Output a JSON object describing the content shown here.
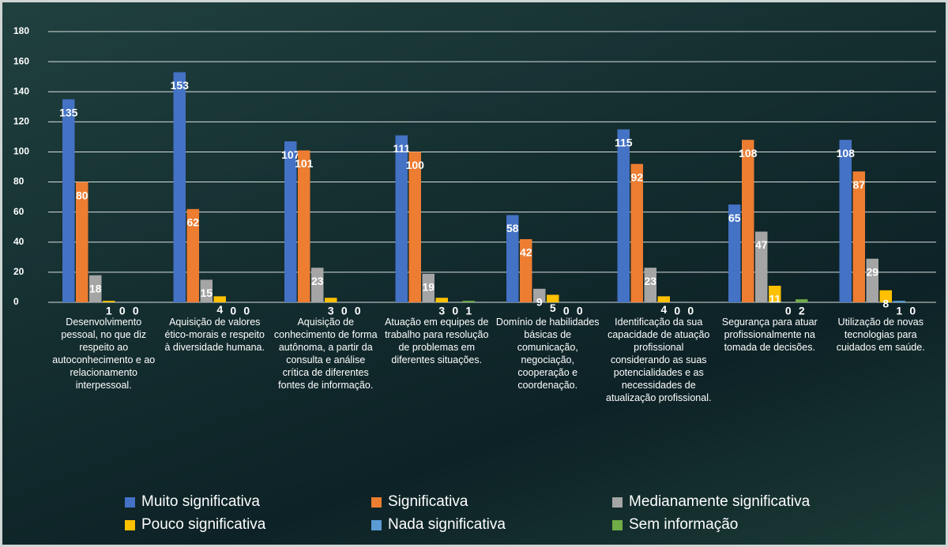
{
  "chart_data": {
    "type": "bar",
    "categories": [
      "Desenvolvimento pessoal, no que diz respeito ao autoconhecimento e ao relacionamento interpessoal.",
      "Aquisição de valores ético-morais e respeito à diversidade humana.",
      "Aquisição de conhecimento de forma autônoma, a partir da consulta e análise crítica de diferentes fontes de informação.",
      "Atuação em equipes de trabalho para resolução de problemas em diferentes situações.",
      "Domínio de habilidades básicas de comunicação, negociação, cooperação e coordenação.",
      "Identificação da sua capacidade de atuação profissional considerando as suas potencialidades e as necessidades de atualização profissional.",
      "Segurança para atuar profissionalmente na tomada de decisões.",
      "Utilização de novas tecnologias para cuidados em saúde."
    ],
    "series": [
      {
        "name": "Muito significativa",
        "color": "#4472c4",
        "values": [
          135,
          153,
          107,
          111,
          58,
          115,
          65,
          108
        ]
      },
      {
        "name": "Significativa",
        "color": "#ed7d31",
        "values": [
          80,
          62,
          101,
          100,
          42,
          92,
          108,
          87
        ]
      },
      {
        "name": "Medianamente significativa",
        "color": "#a5a5a5",
        "values": [
          18,
          15,
          23,
          19,
          9,
          23,
          47,
          29
        ]
      },
      {
        "name": "Pouco significativa",
        "color": "#ffc000",
        "values": [
          1,
          4,
          3,
          3,
          5,
          4,
          11,
          8
        ]
      },
      {
        "name": "Nada significativa",
        "color": "#5b9bd5",
        "values": [
          0,
          0,
          0,
          0,
          0,
          0,
          0,
          1
        ]
      },
      {
        "name": "Sem informação",
        "color": "#70ad47",
        "values": [
          0,
          0,
          0,
          1,
          0,
          0,
          2,
          0
        ]
      }
    ],
    "ylim": [
      0,
      180
    ],
    "yticks": [
      0,
      20,
      40,
      60,
      80,
      100,
      120,
      140,
      160,
      180
    ],
    "grid": true
  }
}
